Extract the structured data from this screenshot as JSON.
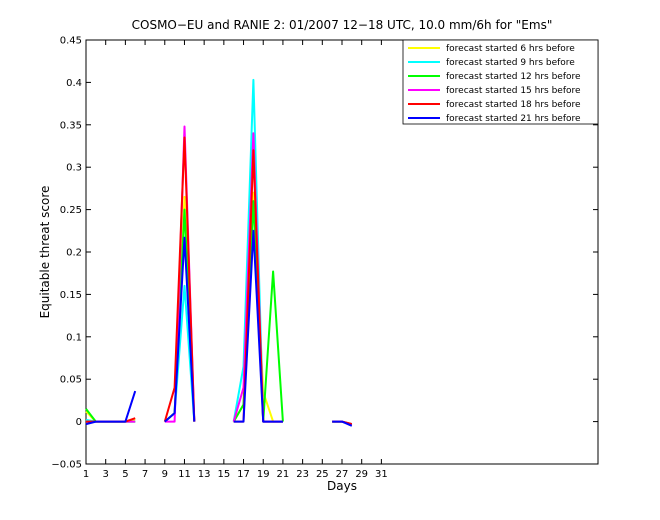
{
  "chart_data": {
    "type": "line",
    "title": "COSMO−EU and RANIE 2: 01/2007 12−18 UTC, 10.0 mm/6h for \"Ems\"",
    "xlabel": "Days",
    "ylabel": "Equitable threat score",
    "xlim": [
      1,
      53
    ],
    "ylim": [
      -0.05,
      0.45
    ],
    "xticks": [
      1,
      3,
      5,
      7,
      9,
      11,
      13,
      15,
      17,
      19,
      21,
      23,
      25,
      27,
      29,
      31
    ],
    "yticks": [
      -0.05,
      0,
      0.05,
      0.1,
      0.15,
      0.2,
      0.25,
      0.3,
      0.35,
      0.4,
      0.45
    ],
    "ytick_labels": [
      "−0.05",
      "0",
      "0.05",
      "0.1",
      "0.15",
      "0.2",
      "0.25",
      "0.3",
      "0.35",
      "0.4",
      "0.45"
    ],
    "legend_position": "top-right",
    "series": [
      {
        "name": "forecast started 6 hrs before",
        "color": "#ffff00",
        "points": [
          [
            1,
            0.012
          ],
          [
            2,
            0
          ],
          [
            5,
            0
          ],
          [
            6,
            0.003
          ],
          [
            null,
            null
          ],
          [
            9,
            0
          ],
          [
            10,
            0.01
          ],
          [
            11,
            0.265
          ],
          [
            12,
            0
          ],
          [
            null,
            null
          ],
          [
            16,
            0
          ],
          [
            17,
            0.02
          ],
          [
            18,
            0.27
          ],
          [
            19,
            0.035
          ],
          [
            20,
            0
          ],
          [
            21,
            0
          ],
          [
            null,
            null
          ],
          [
            26,
            0
          ],
          [
            27,
            0
          ],
          [
            28,
            -0.003
          ]
        ]
      },
      {
        "name": "forecast started 9 hrs before",
        "color": "#00ffff",
        "points": [
          [
            1,
            0.002
          ],
          [
            2,
            0
          ],
          [
            5,
            0
          ],
          [
            6,
            0
          ],
          [
            null,
            null
          ],
          [
            9,
            0
          ],
          [
            10,
            0.01
          ],
          [
            11,
            0.16
          ],
          [
            12,
            0
          ],
          [
            null,
            null
          ],
          [
            16,
            0
          ],
          [
            17,
            0.065
          ],
          [
            18,
            0.403
          ],
          [
            19,
            0
          ],
          [
            20,
            0
          ],
          [
            21,
            0
          ],
          [
            null,
            null
          ],
          [
            26,
            0
          ],
          [
            27,
            0
          ],
          [
            28,
            -0.003
          ]
        ]
      },
      {
        "name": "forecast started 12 hrs before",
        "color": "#00ff00",
        "points": [
          [
            1,
            0.015
          ],
          [
            2,
            0
          ],
          [
            5,
            0
          ],
          [
            6,
            0
          ],
          [
            null,
            null
          ],
          [
            9,
            0
          ],
          [
            10,
            0.01
          ],
          [
            11,
            0.25
          ],
          [
            12,
            0
          ],
          [
            null,
            null
          ],
          [
            16,
            0
          ],
          [
            17,
            0.02
          ],
          [
            18,
            0.26
          ],
          [
            19,
            0
          ],
          [
            20,
            0.177
          ],
          [
            21,
            0
          ],
          [
            null,
            null
          ],
          [
            26,
            0
          ],
          [
            27,
            0
          ],
          [
            28,
            -0.003
          ]
        ]
      },
      {
        "name": "forecast started 15 hrs before",
        "color": "#ff00ff",
        "points": [
          [
            1,
            0
          ],
          [
            2,
            0
          ],
          [
            5,
            0
          ],
          [
            6,
            0
          ],
          [
            null,
            null
          ],
          [
            9,
            0
          ],
          [
            10,
            0
          ],
          [
            11,
            0.348
          ],
          [
            12,
            0
          ],
          [
            null,
            null
          ],
          [
            16,
            0
          ],
          [
            17,
            0.04
          ],
          [
            18,
            0.34
          ],
          [
            19,
            0
          ],
          [
            20,
            0
          ],
          [
            21,
            0
          ],
          [
            null,
            null
          ],
          [
            26,
            0
          ],
          [
            27,
            0
          ],
          [
            28,
            -0.003
          ]
        ]
      },
      {
        "name": "forecast started 18 hrs before",
        "color": "#ff0000",
        "points": [
          [
            1,
            0
          ],
          [
            2,
            0
          ],
          [
            5,
            0
          ],
          [
            6,
            0.004
          ],
          [
            null,
            null
          ],
          [
            9,
            0
          ],
          [
            10,
            0.04
          ],
          [
            11,
            0.335
          ],
          [
            12,
            0
          ],
          [
            null,
            null
          ],
          [
            16,
            0
          ],
          [
            17,
            0
          ],
          [
            18,
            0.32
          ],
          [
            19,
            0
          ],
          [
            20,
            0
          ],
          [
            21,
            0
          ],
          [
            null,
            null
          ],
          [
            26,
            0
          ],
          [
            27,
            0
          ],
          [
            28,
            -0.003
          ]
        ]
      },
      {
        "name": "forecast started 21 hrs before",
        "color": "#0000ff",
        "points": [
          [
            1,
            -0.003
          ],
          [
            2,
            0
          ],
          [
            5,
            0
          ],
          [
            6,
            0.036
          ],
          [
            null,
            null
          ],
          [
            9,
            0
          ],
          [
            10,
            0.01
          ],
          [
            11,
            0.217
          ],
          [
            12,
            0
          ],
          [
            null,
            null
          ],
          [
            14,
            0
          ],
          [
            null,
            null
          ],
          [
            16,
            0
          ],
          [
            17,
            0
          ],
          [
            18,
            0.225
          ],
          [
            19,
            0
          ],
          [
            20,
            0
          ],
          [
            21,
            0
          ],
          [
            null,
            null
          ],
          [
            26,
            0
          ],
          [
            27,
            0
          ],
          [
            28,
            -0.005
          ]
        ]
      }
    ]
  }
}
